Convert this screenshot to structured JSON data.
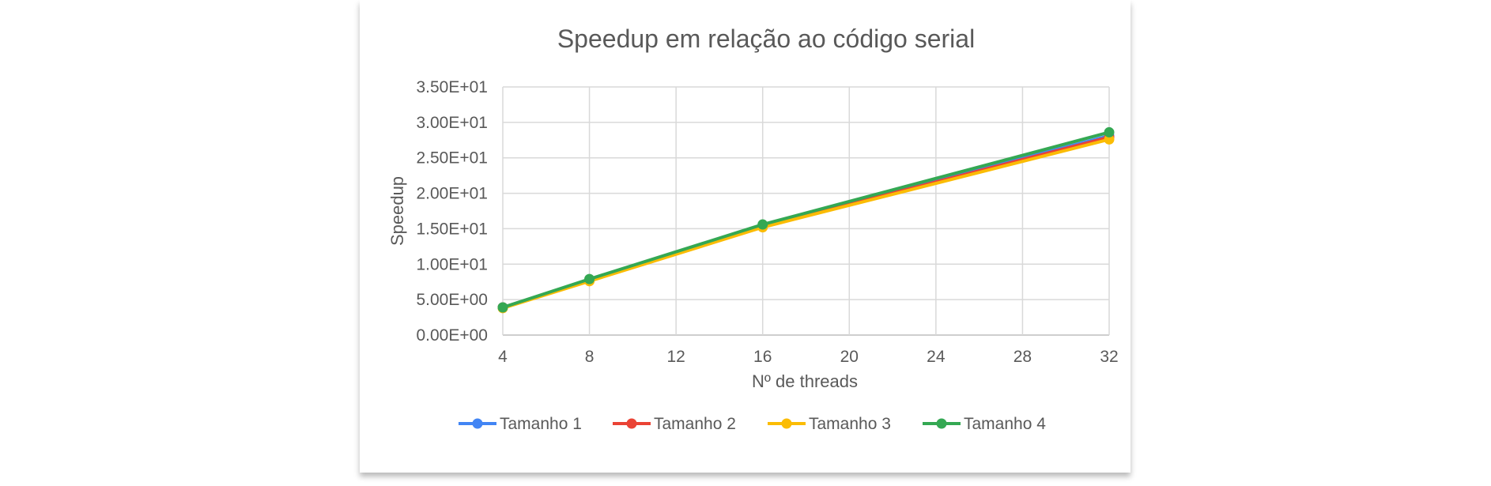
{
  "chart_data": {
    "type": "line",
    "title": "Speedup em relação ao código serial",
    "xlabel": "Nº de threads",
    "ylabel": "Speedup",
    "x": [
      4,
      8,
      16,
      32
    ],
    "x_ticks": [
      "4",
      "8",
      "12",
      "16",
      "20",
      "24",
      "28",
      "32"
    ],
    "x_tick_values": [
      4,
      8,
      12,
      16,
      20,
      24,
      28,
      32
    ],
    "xlim": [
      4,
      32
    ],
    "y_ticks": [
      "0.00E+00",
      "5.00E+00",
      "1.00E+01",
      "1.50E+01",
      "2.00E+01",
      "2.50E+01",
      "3.00E+01",
      "3.50E+01"
    ],
    "y_tick_values": [
      0,
      5,
      10,
      15,
      20,
      25,
      30,
      35
    ],
    "ylim": [
      0,
      35
    ],
    "grid": true,
    "legend_position": "bottom",
    "series": [
      {
        "name": "Tamanho 1",
        "color": "#4285f4",
        "values": [
          3.9,
          7.7,
          15.4,
          28.1
        ]
      },
      {
        "name": "Tamanho 2",
        "color": "#ea4335",
        "values": [
          3.9,
          7.7,
          15.3,
          27.9
        ]
      },
      {
        "name": "Tamanho 3",
        "color": "#fbbc04",
        "values": [
          3.8,
          7.6,
          15.2,
          27.6
        ]
      },
      {
        "name": "Tamanho 4",
        "color": "#34a853",
        "values": [
          3.9,
          7.9,
          15.6,
          28.6
        ]
      }
    ]
  }
}
